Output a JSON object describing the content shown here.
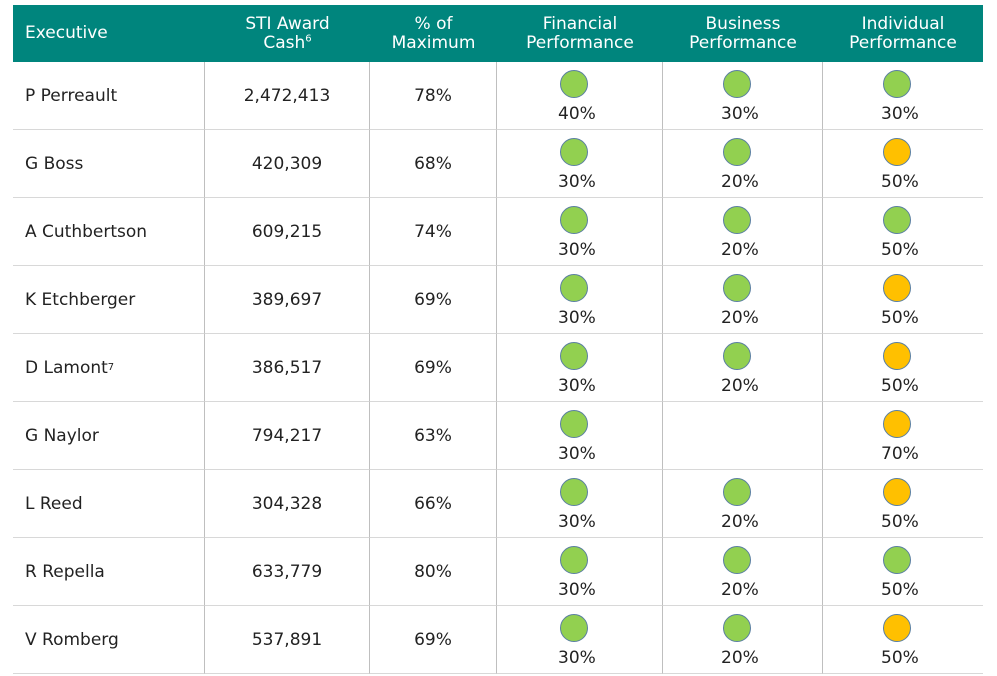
{
  "table": {
    "columns": [
      {
        "lines": [
          "Executive"
        ]
      },
      {
        "lines": [
          "STI Award",
          "Cash"
        ],
        "sup": "6"
      },
      {
        "lines": [
          "% of",
          "Maximum"
        ]
      },
      {
        "lines": [
          "Financial",
          "Performance"
        ]
      },
      {
        "lines": [
          "Business",
          "Performance"
        ]
      },
      {
        "lines": [
          "Individual",
          "Performance"
        ]
      }
    ],
    "rows": [
      {
        "name": "P Perreault",
        "award": "2,472,413",
        "pct": "78%",
        "ratings": [
          {
            "text": "40%",
            "color": "#92d050"
          },
          {
            "text": "30%",
            "color": "#92d050"
          },
          {
            "text": "30%",
            "color": "#92d050"
          }
        ]
      },
      {
        "name": "G Boss",
        "award": "420,309",
        "pct": "68%",
        "ratings": [
          {
            "text": "30%",
            "color": "#92d050"
          },
          {
            "text": "20%",
            "color": "#92d050"
          },
          {
            "text": "50%",
            "color": "#ffc000"
          }
        ]
      },
      {
        "name": "A Cuthbertson",
        "award": "609,215",
        "pct": "74%",
        "ratings": [
          {
            "text": "30%",
            "color": "#92d050"
          },
          {
            "text": "20%",
            "color": "#92d050"
          },
          {
            "text": "50%",
            "color": "#92d050"
          }
        ]
      },
      {
        "name": "K Etchberger",
        "award": "389,697",
        "pct": "69%",
        "ratings": [
          {
            "text": "30%",
            "color": "#92d050"
          },
          {
            "text": "20%",
            "color": "#92d050"
          },
          {
            "text": "50%",
            "color": "#ffc000"
          }
        ]
      },
      {
        "name": "D Lamont",
        "sup": "7",
        "award": "386,517",
        "pct": "69%",
        "ratings": [
          {
            "text": "30%",
            "color": "#92d050"
          },
          {
            "text": "20%",
            "color": "#92d050"
          },
          {
            "text": "50%",
            "color": "#ffc000"
          }
        ]
      },
      {
        "name": "G Naylor",
        "award": "794,217",
        "pct": "63%",
        "ratings": [
          {
            "text": "30%",
            "color": "#92d050"
          },
          null,
          {
            "text": "70%",
            "color": "#ffc000"
          }
        ]
      },
      {
        "name": "L Reed",
        "award": "304,328",
        "pct": "66%",
        "ratings": [
          {
            "text": "30%",
            "color": "#92d050"
          },
          {
            "text": "20%",
            "color": "#92d050"
          },
          {
            "text": "50%",
            "color": "#ffc000"
          }
        ]
      },
      {
        "name": "R Repella",
        "award": "633,779",
        "pct": "80%",
        "ratings": [
          {
            "text": "30%",
            "color": "#92d050"
          },
          {
            "text": "20%",
            "color": "#92d050"
          },
          {
            "text": "50%",
            "color": "#92d050"
          }
        ]
      },
      {
        "name": "V Romberg",
        "award": "537,891",
        "pct": "69%",
        "ratings": [
          {
            "text": "30%",
            "color": "#92d050"
          },
          {
            "text": "20%",
            "color": "#92d050"
          },
          {
            "text": "50%",
            "color": "#ffc000"
          }
        ]
      }
    ]
  }
}
